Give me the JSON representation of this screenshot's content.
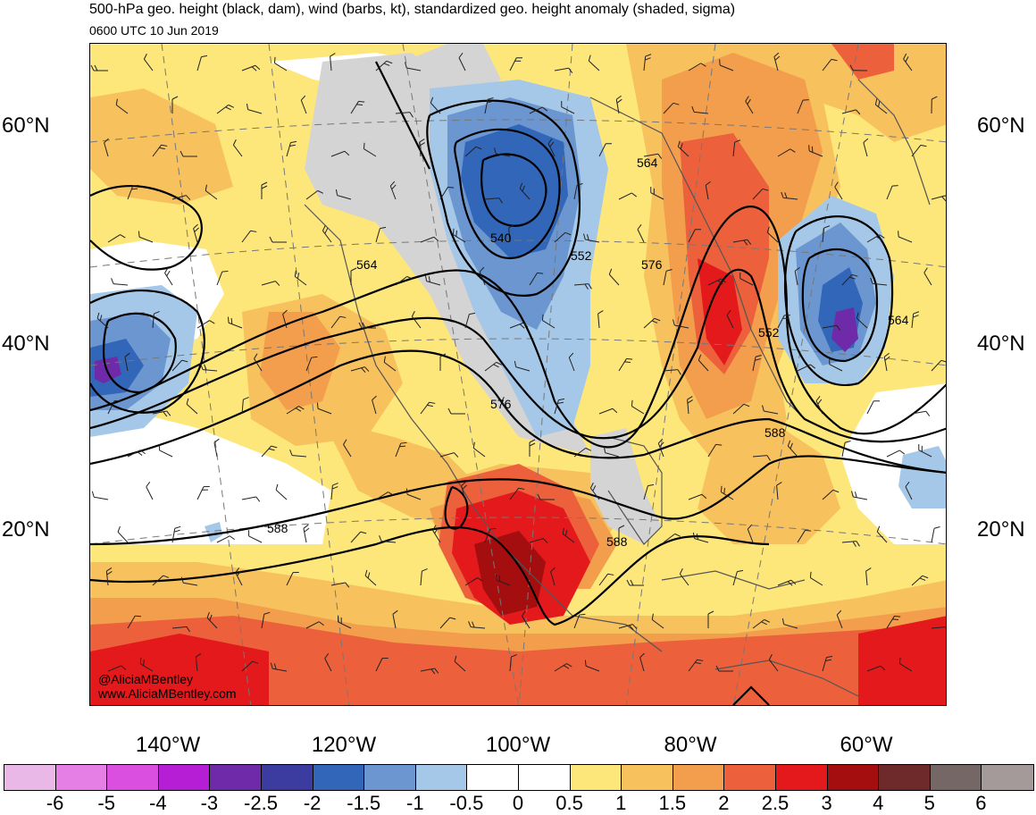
{
  "title": "500-hPa geo. height (black, dam), wind (barbs, kt), standardized geo. height anomaly (shaded, sigma)",
  "valid_time": "0600 UTC 10 Jun 2019",
  "latitude_labels": [
    "60°N",
    "40°N",
    "20°N"
  ],
  "longitude_labels": [
    "140°W",
    "120°W",
    "100°W",
    "80°W",
    "60°W"
  ],
  "contour_labels": [
    "564",
    "540",
    "552",
    "564",
    "576",
    "576",
    "588",
    "588",
    "588",
    "552",
    "564"
  ],
  "credits": {
    "handle": "@AliciaMBentley",
    "website": "www.AliciaMBentley.com"
  },
  "colorbar": {
    "colors": [
      "#eab8e6",
      "#e57fe5",
      "#da4fe0",
      "#b51ed4",
      "#6f2aa9",
      "#3c3b9f",
      "#3266b9",
      "#6b96d0",
      "#a6c8e8",
      "#ffffff",
      "#ffffff",
      "#fde77b",
      "#f7c15e",
      "#f29e4c",
      "#ec613b",
      "#e3191c",
      "#a50e0e",
      "#6e2a2a",
      "#746766",
      "#a59a9a"
    ],
    "labels": [
      "-6",
      "-5",
      "-4",
      "-3",
      "-2.5",
      "-2",
      "-1.5",
      "-1",
      "-0.5",
      "0",
      "0.5",
      "1",
      "1.5",
      "2",
      "2.5",
      "3",
      "4",
      "5",
      "6"
    ]
  },
  "anomaly_colors": {
    "weak_positive": "#fde77b",
    "positive_1": "#f7c15e",
    "positive_15": "#f29e4c",
    "positive_2": "#ec613b",
    "positive_25": "#e3191c",
    "positive_3": "#a50e0e",
    "negative_05": "#a6c8e8",
    "negative_1": "#6b96d0",
    "negative_15": "#3266b9",
    "negative_25": "#3c3b9f",
    "negative_3": "#6f2aa9",
    "land": "#d4d4d4"
  }
}
